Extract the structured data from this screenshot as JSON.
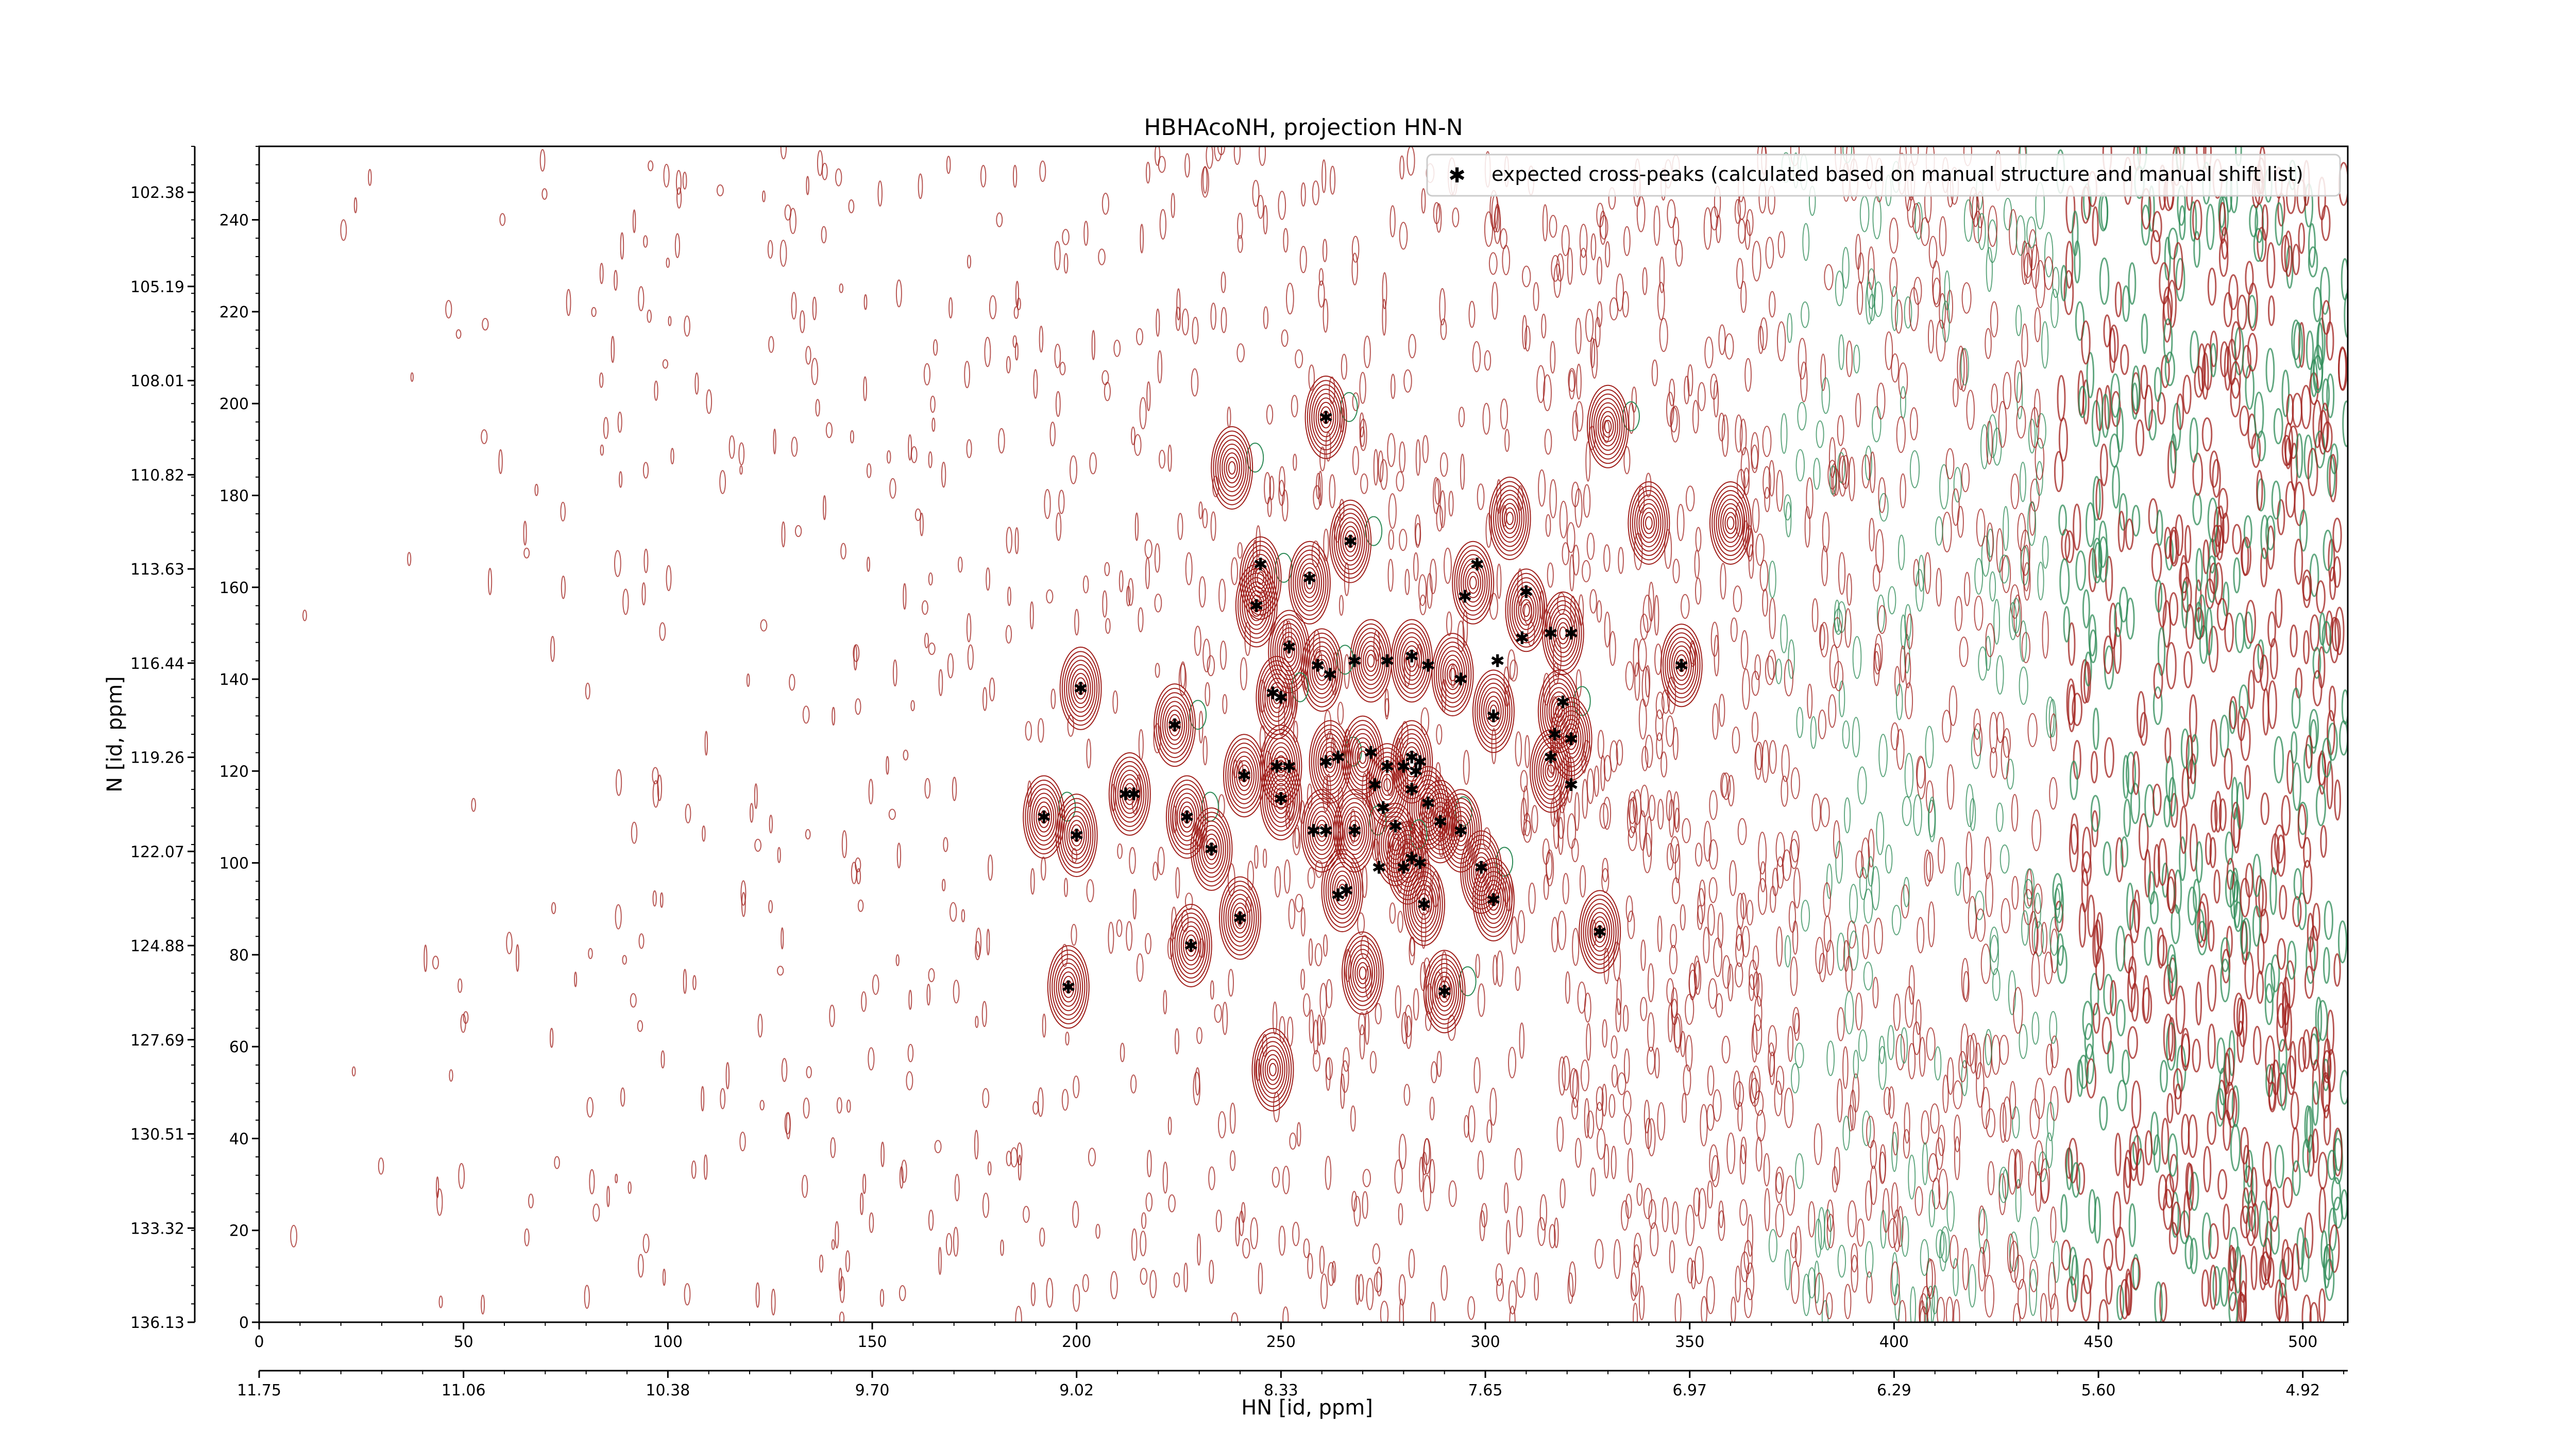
{
  "chart_data": {
    "type": "contour",
    "title": "HBHAcoNH, projection HN-N",
    "xlabel": "HN [id, ppm]",
    "ylabel": "N [id, ppm]",
    "xlim": [
      0,
      511
    ],
    "ylim": [
      0,
      256
    ],
    "x_index_ticks": [
      "0",
      "50",
      "100",
      "150",
      "200",
      "250",
      "300",
      "350",
      "400",
      "450",
      "500"
    ],
    "x_ppm_ticks": [
      {
        "index": 0,
        "label": "11.75"
      },
      {
        "index": 50,
        "label": "11.06"
      },
      {
        "index": 100,
        "label": "10.38"
      },
      {
        "index": 150,
        "label": "9.70"
      },
      {
        "index": 200,
        "label": "9.02"
      },
      {
        "index": 250,
        "label": "8.33"
      },
      {
        "index": 300,
        "label": "7.65"
      },
      {
        "index": 350,
        "label": "6.97"
      },
      {
        "index": 400,
        "label": "6.29"
      },
      {
        "index": 450,
        "label": "5.60"
      },
      {
        "index": 500,
        "label": "4.92"
      }
    ],
    "y_index_ticks": [
      "0",
      "20",
      "40",
      "60",
      "80",
      "100",
      "120",
      "140",
      "160",
      "180",
      "200",
      "220",
      "240"
    ],
    "y_ppm_ticks": [
      {
        "index": 0,
        "label": "136.13"
      },
      {
        "index": 20.5,
        "label": "133.32"
      },
      {
        "index": 41,
        "label": "130.51"
      },
      {
        "index": 61.5,
        "label": "127.69"
      },
      {
        "index": 82,
        "label": "124.88"
      },
      {
        "index": 102.5,
        "label": "122.07"
      },
      {
        "index": 123,
        "label": "119.26"
      },
      {
        "index": 143.5,
        "label": "116.44"
      },
      {
        "index": 164,
        "label": "113.63"
      },
      {
        "index": 184.5,
        "label": "110.82"
      },
      {
        "index": 205,
        "label": "108.01"
      },
      {
        "index": 225.5,
        "label": "105.19"
      },
      {
        "index": 246,
        "label": "102.38"
      }
    ],
    "legend": {
      "position": "top-right",
      "label": "expected cross-peaks (calculated based on manual structure and manual shift list)",
      "marker_color": "#0000ff"
    },
    "colors": {
      "positive_contours": "#a0201c",
      "negative_contours": "#2e8b57",
      "expected_peaks": "#0000ff"
    },
    "expected_peaks": [
      {
        "x": 261,
        "y": 197
      },
      {
        "x": 267,
        "y": 170
      },
      {
        "x": 245,
        "y": 165
      },
      {
        "x": 257,
        "y": 162
      },
      {
        "x": 298,
        "y": 165
      },
      {
        "x": 295,
        "y": 158
      },
      {
        "x": 310,
        "y": 159
      },
      {
        "x": 244,
        "y": 156
      },
      {
        "x": 309,
        "y": 149
      },
      {
        "x": 316,
        "y": 150
      },
      {
        "x": 321,
        "y": 150
      },
      {
        "x": 252,
        "y": 147
      },
      {
        "x": 276,
        "y": 144
      },
      {
        "x": 268,
        "y": 144
      },
      {
        "x": 282,
        "y": 145
      },
      {
        "x": 259,
        "y": 143
      },
      {
        "x": 262,
        "y": 141
      },
      {
        "x": 286,
        "y": 143
      },
      {
        "x": 303,
        "y": 144
      },
      {
        "x": 294,
        "y": 140
      },
      {
        "x": 348,
        "y": 143
      },
      {
        "x": 201,
        "y": 138
      },
      {
        "x": 248,
        "y": 137
      },
      {
        "x": 250,
        "y": 136
      },
      {
        "x": 319,
        "y": 135
      },
      {
        "x": 302,
        "y": 132
      },
      {
        "x": 224,
        "y": 130
      },
      {
        "x": 317,
        "y": 128
      },
      {
        "x": 321,
        "y": 127
      },
      {
        "x": 272,
        "y": 124
      },
      {
        "x": 264,
        "y": 123
      },
      {
        "x": 261,
        "y": 122
      },
      {
        "x": 282,
        "y": 123
      },
      {
        "x": 284,
        "y": 122
      },
      {
        "x": 316,
        "y": 123
      },
      {
        "x": 249,
        "y": 121
      },
      {
        "x": 252,
        "y": 121
      },
      {
        "x": 276,
        "y": 121
      },
      {
        "x": 280,
        "y": 121
      },
      {
        "x": 283,
        "y": 120
      },
      {
        "x": 241,
        "y": 119
      },
      {
        "x": 273,
        "y": 117
      },
      {
        "x": 282,
        "y": 116
      },
      {
        "x": 321,
        "y": 117
      },
      {
        "x": 212,
        "y": 115
      },
      {
        "x": 214,
        "y": 115
      },
      {
        "x": 250,
        "y": 114
      },
      {
        "x": 275,
        "y": 112
      },
      {
        "x": 286,
        "y": 113
      },
      {
        "x": 192,
        "y": 110
      },
      {
        "x": 227,
        "y": 110
      },
      {
        "x": 289,
        "y": 109
      },
      {
        "x": 261,
        "y": 107
      },
      {
        "x": 258,
        "y": 107
      },
      {
        "x": 268,
        "y": 107
      },
      {
        "x": 278,
        "y": 108
      },
      {
        "x": 294,
        "y": 107
      },
      {
        "x": 200,
        "y": 106
      },
      {
        "x": 233,
        "y": 103
      },
      {
        "x": 282,
        "y": 101
      },
      {
        "x": 284,
        "y": 100
      },
      {
        "x": 274,
        "y": 99
      },
      {
        "x": 280,
        "y": 99
      },
      {
        "x": 299,
        "y": 99
      },
      {
        "x": 266,
        "y": 94
      },
      {
        "x": 264,
        "y": 93
      },
      {
        "x": 285,
        "y": 91
      },
      {
        "x": 302,
        "y": 92
      },
      {
        "x": 240,
        "y": 88
      },
      {
        "x": 328,
        "y": 85
      },
      {
        "x": 228,
        "y": 82
      },
      {
        "x": 198,
        "y": 73
      },
      {
        "x": 290,
        "y": 72
      }
    ],
    "signal_clusters": [
      {
        "x": 261,
        "y": 197
      },
      {
        "x": 238,
        "y": 186
      },
      {
        "x": 267,
        "y": 170
      },
      {
        "x": 245,
        "y": 162
      },
      {
        "x": 257,
        "y": 161
      },
      {
        "x": 297,
        "y": 161
      },
      {
        "x": 310,
        "y": 155
      },
      {
        "x": 244,
        "y": 156
      },
      {
        "x": 319,
        "y": 150
      },
      {
        "x": 252,
        "y": 146
      },
      {
        "x": 272,
        "y": 144
      },
      {
        "x": 282,
        "y": 144
      },
      {
        "x": 260,
        "y": 142
      },
      {
        "x": 292,
        "y": 141
      },
      {
        "x": 348,
        "y": 143
      },
      {
        "x": 201,
        "y": 138
      },
      {
        "x": 249,
        "y": 136
      },
      {
        "x": 318,
        "y": 133
      },
      {
        "x": 302,
        "y": 133
      },
      {
        "x": 224,
        "y": 130
      },
      {
        "x": 321,
        "y": 127
      },
      {
        "x": 262,
        "y": 122
      },
      {
        "x": 270,
        "y": 123
      },
      {
        "x": 282,
        "y": 122
      },
      {
        "x": 250,
        "y": 121
      },
      {
        "x": 241,
        "y": 119
      },
      {
        "x": 316,
        "y": 120
      },
      {
        "x": 213,
        "y": 115
      },
      {
        "x": 276,
        "y": 117
      },
      {
        "x": 250,
        "y": 114
      },
      {
        "x": 286,
        "y": 112
      },
      {
        "x": 192,
        "y": 110
      },
      {
        "x": 227,
        "y": 110
      },
      {
        "x": 289,
        "y": 109
      },
      {
        "x": 260,
        "y": 107
      },
      {
        "x": 268,
        "y": 107
      },
      {
        "x": 294,
        "y": 107
      },
      {
        "x": 200,
        "y": 106
      },
      {
        "x": 233,
        "y": 103
      },
      {
        "x": 278,
        "y": 104
      },
      {
        "x": 281,
        "y": 100
      },
      {
        "x": 299,
        "y": 98
      },
      {
        "x": 265,
        "y": 94
      },
      {
        "x": 285,
        "y": 91
      },
      {
        "x": 302,
        "y": 92
      },
      {
        "x": 240,
        "y": 88
      },
      {
        "x": 328,
        "y": 85
      },
      {
        "x": 228,
        "y": 82
      },
      {
        "x": 198,
        "y": 73
      },
      {
        "x": 290,
        "y": 72
      },
      {
        "x": 270,
        "y": 76
      },
      {
        "x": 248,
        "y": 55
      },
      {
        "x": 306,
        "y": 175
      },
      {
        "x": 340,
        "y": 174
      },
      {
        "x": 360,
        "y": 174
      },
      {
        "x": 330,
        "y": 195
      }
    ]
  }
}
